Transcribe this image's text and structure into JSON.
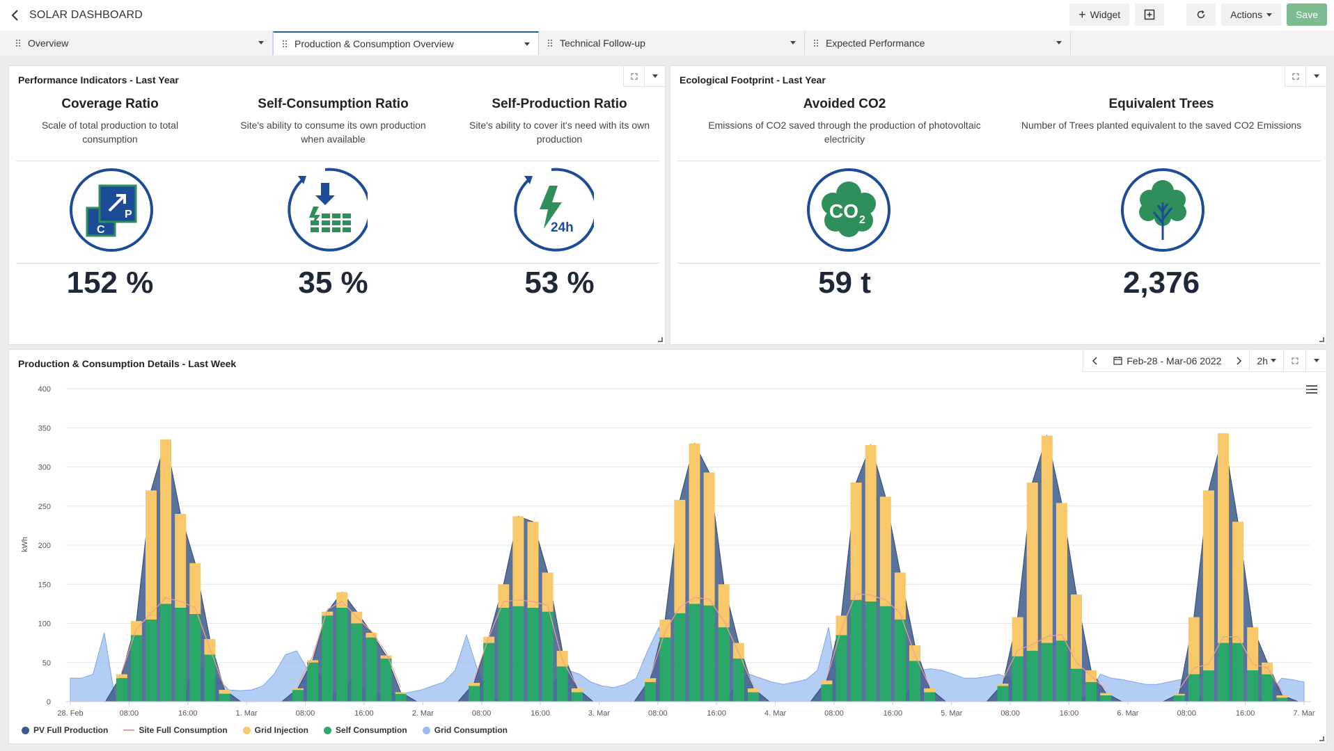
{
  "app": {
    "title": "SOLAR DASHBOARD"
  },
  "toolbar": {
    "widget_label": "Widget",
    "actions_label": "Actions",
    "save_label": "Save"
  },
  "tabs": [
    {
      "label": "Overview",
      "active": false
    },
    {
      "label": "Production & Consumption Overview",
      "active": true
    },
    {
      "label": "Technical Follow-up",
      "active": false
    },
    {
      "label": "Expected Performance",
      "active": false
    }
  ],
  "performance": {
    "title": "Performance Indicators - Last Year",
    "kpis": [
      {
        "title": "Coverage Ratio",
        "desc": "Scale of total production to total consumption",
        "value": "152 %",
        "icon": "coverage-ratio-icon"
      },
      {
        "title": "Self-Consumption Ratio",
        "desc": "Site's ability to consume its own production when available",
        "value": "35 %",
        "icon": "self-consumption-icon"
      },
      {
        "title": "Self-Production Ratio",
        "desc": "Site's ability to cover it's need with its own production",
        "value": "53 %",
        "icon": "self-production-icon"
      }
    ]
  },
  "ecological": {
    "title": "Ecological Footprint - Last Year",
    "kpis": [
      {
        "title": "Avoided CO2",
        "desc": "Emissions of CO2 saved through the production of photovoltaic electricity",
        "value": "59 t",
        "icon": "co2-cloud-icon"
      },
      {
        "title": "Equivalent Trees",
        "desc": "Number of Trees planted equivalent to the saved CO2 Emissions",
        "value": "2,376",
        "icon": "tree-icon"
      }
    ]
  },
  "details": {
    "title": "Production & Consumption Details - Last Week",
    "date_range": "Feb-28 - Mar-06 2022",
    "interval": "2h"
  },
  "colors": {
    "pv": "#3d5a8c",
    "site": "#f0a090",
    "injection": "#f7c96a",
    "self": "#2aa86a",
    "grid": "#9bbcf0",
    "accent": "#1f4f9c",
    "save": "#7dbb91"
  },
  "chart_data": {
    "type": "bar",
    "ylabel": "kWh",
    "ylim": [
      0,
      400
    ],
    "yticks": [
      0,
      50,
      100,
      150,
      200,
      250,
      300,
      350,
      400
    ],
    "x_tick_labels": [
      "28. Feb",
      "08:00",
      "16:00",
      "1. Mar",
      "08:00",
      "16:00",
      "2. Mar",
      "08:00",
      "16:00",
      "3. Mar",
      "08:00",
      "16:00",
      "4. Mar",
      "08:00",
      "16:00",
      "5. Mar",
      "08:00",
      "16:00",
      "6. Mar",
      "08:00",
      "16:00",
      "7. Mar"
    ],
    "legend": [
      "PV Full Production",
      "Site Full Consumption",
      "Grid Injection",
      "Self Consumption",
      "Grid Consumption"
    ],
    "days": [
      {
        "self": [
          30,
          85,
          105,
          125,
          120,
          112,
          60,
          10
        ],
        "inj": [
          5,
          18,
          165,
          210,
          120,
          65,
          20,
          5
        ]
      },
      {
        "self": [
          15,
          50,
          110,
          120,
          100,
          82,
          55,
          10
        ],
        "inj": [
          2,
          3,
          5,
          20,
          15,
          6,
          4,
          2
        ]
      },
      {
        "self": [
          20,
          75,
          120,
          122,
          120,
          115,
          45,
          12
        ],
        "inj": [
          4,
          8,
          30,
          115,
          110,
          50,
          20,
          5
        ]
      },
      {
        "self": [
          25,
          82,
          113,
          125,
          123,
          95,
          55,
          12
        ],
        "inj": [
          5,
          23,
          145,
          205,
          170,
          55,
          20,
          5
        ]
      },
      {
        "self": [
          22,
          85,
          130,
          128,
          122,
          105,
          52,
          12
        ],
        "inj": [
          5,
          25,
          150,
          200,
          140,
          60,
          20,
          5
        ]
      },
      {
        "self": [
          20,
          58,
          65,
          75,
          78,
          42,
          25,
          8
        ],
        "inj": [
          3,
          50,
          215,
          265,
          176,
          95,
          15,
          3
        ]
      },
      {
        "self": [
          8,
          35,
          40,
          75,
          75,
          40,
          35,
          5
        ],
        "inj": [
          2,
          73,
          230,
          268,
          155,
          55,
          15,
          3
        ]
      }
    ],
    "grid": [
      30,
      30,
      35,
      88,
      0,
      0,
      0,
      0,
      0,
      0,
      0,
      50,
      40,
      30,
      15,
      14,
      15,
      20,
      35,
      60,
      65,
      40,
      35,
      12,
      10,
      30,
      15,
      10,
      10,
      10,
      12,
      15,
      20,
      25,
      40,
      85,
      40,
      5,
      0,
      0,
      0,
      0,
      0,
      30,
      40,
      35,
      25,
      20,
      18,
      22,
      30,
      65,
      95,
      0,
      0,
      0,
      0,
      0,
      0,
      30,
      35,
      30,
      25,
      22,
      25,
      28,
      40,
      95,
      0,
      0,
      0,
      0,
      0,
      0,
      10,
      40,
      42,
      40,
      35,
      30,
      30,
      32,
      35,
      30,
      0,
      0,
      0,
      0,
      0,
      0,
      10,
      35,
      30,
      28,
      25,
      22,
      22,
      25,
      28,
      30,
      0,
      0,
      0,
      0,
      0,
      0,
      10,
      30,
      28,
      25
    ]
  }
}
